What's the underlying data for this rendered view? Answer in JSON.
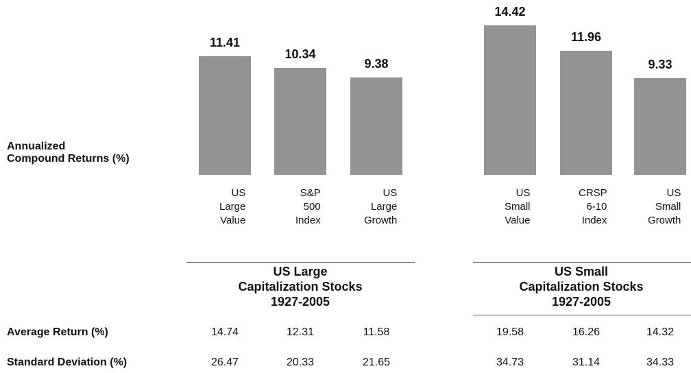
{
  "y_label": [
    "Annualized",
    "Compound Returns (%)"
  ],
  "chart_data": [
    {
      "type": "bar",
      "title": [
        "US Large",
        "Capitalization Stocks",
        "1927-2005"
      ],
      "categories": [
        "US Large Value",
        "S&P 500 Index",
        "US Large Growth"
      ],
      "values": [
        11.41,
        10.34,
        9.38
      ],
      "color": "#939393"
    },
    {
      "type": "bar",
      "title": [
        "US Small",
        "Capitalization Stocks",
        "1927-2005"
      ],
      "categories": [
        "US Small Value",
        "CRSP 6-10 Index",
        "US Small Growth"
      ],
      "values": [
        14.42,
        11.96,
        9.33
      ],
      "color": "#939393"
    }
  ],
  "table": {
    "rows": [
      {
        "label": "Average Return (%)",
        "values": [
          [
            14.74,
            12.31,
            11.58
          ],
          [
            19.58,
            16.26,
            14.32
          ]
        ]
      },
      {
        "label": "Standard Deviation (%)",
        "values": [
          [
            26.47,
            20.33,
            21.65
          ],
          [
            34.73,
            31.14,
            34.33
          ]
        ]
      }
    ]
  }
}
